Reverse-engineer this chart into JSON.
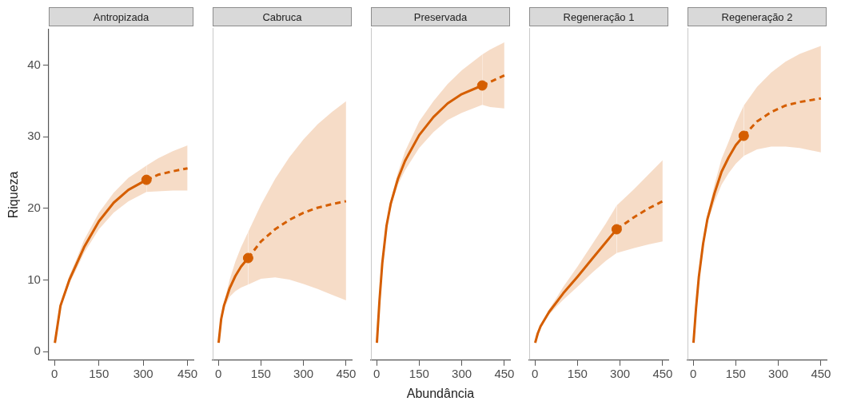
{
  "chart_data": [
    {
      "type": "line",
      "title": "Antropizada",
      "ylabel": "Riqueza",
      "xlim": [
        -20,
        470
      ],
      "ylim": [
        -1.2,
        45
      ],
      "xticks": [
        0,
        150,
        300,
        450
      ],
      "yticks": [
        0,
        10,
        20,
        30,
        40
      ],
      "series": [
        {
          "type": "line",
          "color": "#d55e00",
          "line_style": "solid",
          "x": [
            1,
            20,
            50,
            75,
            100,
            150,
            200,
            250,
            311
          ],
          "values": [
            1.2,
            6.4,
            10,
            12.3,
            14.6,
            18.2,
            20.8,
            22.6,
            24
          ],
          "lower": [
            1.2,
            6.2,
            9.5,
            11.6,
            13.8,
            17.1,
            19.4,
            21,
            22.3
          ],
          "upper": [
            1.2,
            6.6,
            10.6,
            13,
            15.6,
            19.4,
            22.2,
            24.3,
            26
          ]
        },
        {
          "type": "line",
          "color": "#d55e00",
          "line_style": "dashed",
          "x": [
            311,
            350,
            400,
            450
          ],
          "values": [
            24,
            24.7,
            25.2,
            25.6
          ],
          "lower": [
            22.3,
            22.4,
            22.5,
            22.5
          ],
          "upper": [
            26,
            27,
            28,
            28.8
          ]
        },
        {
          "type": "scatter",
          "color": "#d55e00",
          "marker": "circle",
          "x": [
            311
          ],
          "values": [
            24
          ]
        }
      ]
    },
    {
      "type": "line",
      "title": "Cabruca",
      "tick_labels": "x",
      "xlim": [
        -20,
        470
      ],
      "ylim": [
        -1.2,
        45
      ],
      "xticks": [
        0,
        150,
        300,
        450
      ],
      "yticks": [
        0,
        10,
        20,
        30,
        40
      ],
      "series": [
        {
          "type": "line",
          "color": "#d55e00",
          "line_style": "solid",
          "x": [
            1,
            10,
            20,
            40,
            60,
            80,
            105
          ],
          "values": [
            1.2,
            4.5,
            6.4,
            8.8,
            10.5,
            11.8,
            13
          ],
          "lower": [
            1.2,
            4.3,
            6,
            7.6,
            8.4,
            8.9,
            9.3
          ],
          "upper": [
            1.2,
            4.7,
            6.8,
            10,
            12.5,
            14.5,
            16.6
          ]
        },
        {
          "type": "line",
          "color": "#d55e00",
          "line_style": "dashed",
          "x": [
            105,
            150,
            200,
            250,
            300,
            350,
            400,
            450
          ],
          "values": [
            13,
            15.3,
            17,
            18.3,
            19.3,
            20,
            20.5,
            20.9
          ],
          "lower": [
            9.3,
            10.1,
            10.3,
            10,
            9.4,
            8.7,
            7.9,
            7.1
          ],
          "upper": [
            16.6,
            20.4,
            24,
            27,
            29.5,
            31.6,
            33.3,
            34.8
          ]
        },
        {
          "type": "scatter",
          "color": "#d55e00",
          "marker": "circle",
          "x": [
            105
          ],
          "values": [
            13
          ]
        }
      ]
    },
    {
      "type": "line",
      "title": "Preservada",
      "xlabel": "Abundância",
      "tick_labels": "x",
      "xlim": [
        -20,
        470
      ],
      "ylim": [
        -1.2,
        45
      ],
      "xticks": [
        0,
        150,
        300,
        450
      ],
      "yticks": [
        0,
        10,
        20,
        30,
        40
      ],
      "series": [
        {
          "type": "line",
          "color": "#d55e00",
          "line_style": "solid",
          "x": [
            1,
            10,
            20,
            35,
            50,
            75,
            100,
            150,
            200,
            250,
            300,
            372
          ],
          "values": [
            1.2,
            7,
            12.3,
            17.5,
            20.6,
            24,
            26.5,
            30.1,
            32.6,
            34.5,
            35.8,
            37
          ],
          "lower": [
            1.2,
            7,
            12.2,
            17.2,
            20.1,
            23.2,
            25.2,
            28.3,
            30.5,
            32.2,
            33.2,
            34.3
          ],
          "upper": [
            1.2,
            7,
            12.4,
            17.8,
            21.1,
            24.9,
            27.8,
            32,
            34.8,
            37.2,
            39.1,
            41.3
          ]
        },
        {
          "type": "line",
          "color": "#d55e00",
          "line_style": "dashed",
          "x": [
            372,
            400,
            450
          ],
          "values": [
            37,
            37.5,
            38.4
          ],
          "lower": [
            34.3,
            34,
            33.8
          ],
          "upper": [
            41.3,
            42,
            43
          ]
        },
        {
          "type": "scatter",
          "color": "#d55e00",
          "marker": "circle",
          "x": [
            372
          ],
          "values": [
            37
          ]
        }
      ]
    },
    {
      "type": "line",
      "title": "Regeneração 1",
      "tick_labels": "x",
      "xlim": [
        -20,
        470
      ],
      "ylim": [
        -1.2,
        45
      ],
      "xticks": [
        0,
        150,
        300,
        450
      ],
      "yticks": [
        0,
        10,
        20,
        30,
        40
      ],
      "series": [
        {
          "type": "line",
          "color": "#d55e00",
          "line_style": "solid",
          "x": [
            1,
            10,
            20,
            50,
            75,
            100,
            150,
            200,
            250,
            288
          ],
          "values": [
            1.2,
            2.5,
            3.5,
            5.5,
            6.8,
            8.1,
            10.4,
            12.8,
            15.2,
            17
          ],
          "lower": [
            1.2,
            2.5,
            3.4,
            5.1,
            6.2,
            7.2,
            9,
            10.9,
            12.6,
            13.7
          ],
          "upper": [
            1.2,
            2.5,
            3.6,
            5.9,
            7.4,
            9,
            11.8,
            14.8,
            17.8,
            20.3
          ]
        },
        {
          "type": "line",
          "color": "#d55e00",
          "line_style": "dashed",
          "x": [
            288,
            350,
            400,
            450
          ],
          "values": [
            17,
            18.7,
            19.9,
            20.9
          ],
          "lower": [
            13.7,
            14.4,
            14.9,
            15.3
          ],
          "upper": [
            20.3,
            22.6,
            24.6,
            26.6
          ]
        },
        {
          "type": "scatter",
          "color": "#d55e00",
          "marker": "circle",
          "x": [
            288
          ],
          "values": [
            17
          ]
        }
      ]
    },
    {
      "type": "line",
      "title": "Regeneração 2",
      "tick_labels": "x",
      "xlim": [
        -20,
        470
      ],
      "ylim": [
        -1.2,
        45
      ],
      "xticks": [
        0,
        150,
        300,
        450
      ],
      "yticks": [
        0,
        10,
        20,
        30,
        40
      ],
      "series": [
        {
          "type": "line",
          "color": "#d55e00",
          "line_style": "solid",
          "x": [
            1,
            10,
            20,
            35,
            50,
            75,
            100,
            125,
            150,
            178
          ],
          "values": [
            1.2,
            6,
            10.4,
            15,
            18.4,
            22,
            25,
            27,
            28.7,
            30
          ],
          "lower": [
            1.2,
            6,
            10.3,
            14.6,
            17.8,
            20.8,
            23.2,
            24.8,
            26.1,
            27.2
          ],
          "upper": [
            1.2,
            6,
            10.5,
            15.4,
            19,
            23.2,
            26.8,
            29.2,
            31.8,
            34.2
          ]
        },
        {
          "type": "line",
          "color": "#d55e00",
          "line_style": "dashed",
          "x": [
            178,
            225,
            275,
            325,
            375,
            450
          ],
          "values": [
            30,
            32,
            33.3,
            34.2,
            34.7,
            35.2
          ],
          "lower": [
            27.2,
            28.1,
            28.5,
            28.5,
            28.3,
            27.7
          ],
          "upper": [
            34.2,
            36.8,
            38.8,
            40.3,
            41.4,
            42.5
          ]
        },
        {
          "type": "scatter",
          "color": "#d55e00",
          "marker": "circle",
          "x": [
            178
          ],
          "values": [
            30
          ]
        }
      ]
    }
  ]
}
